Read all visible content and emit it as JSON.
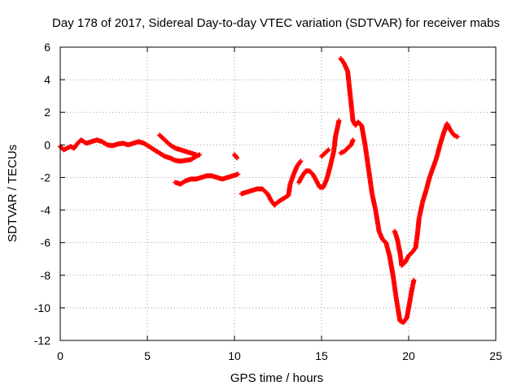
{
  "chart_data": {
    "type": "scatter",
    "title": "Day 178 of 2017, Sidereal Day-to-day VTEC variation (SDTVAR) for receiver mabs",
    "xlabel": "GPS time / hours",
    "ylabel": "SDTVAR / TECUs",
    "xlim": [
      0,
      25
    ],
    "ylim": [
      -12,
      6
    ],
    "x_ticks": [
      "0",
      "5",
      "10",
      "15",
      "20",
      "25"
    ],
    "y_ticks": [
      "-12",
      "-10",
      "-8",
      "-6",
      "-4",
      "-2",
      "0",
      "2",
      "4",
      "6"
    ],
    "grid": true,
    "marker": "plus",
    "series": [
      {
        "name": "SDTVAR",
        "color": "#ff0000",
        "segments": [
          [
            [
              0.0,
              -0.1
            ],
            [
              0.2,
              -0.3
            ],
            [
              0.4,
              -0.2
            ],
            [
              0.6,
              -0.1
            ],
            [
              0.8,
              -0.2
            ],
            [
              1.0,
              0.1
            ],
            [
              1.2,
              0.3
            ],
            [
              1.5,
              0.1
            ],
            [
              1.8,
              0.2
            ],
            [
              2.1,
              0.3
            ],
            [
              2.4,
              0.2
            ],
            [
              2.7,
              0.0
            ],
            [
              3.0,
              -0.05
            ],
            [
              3.3,
              0.05
            ],
            [
              3.6,
              0.1
            ],
            [
              3.9,
              0.0
            ],
            [
              4.2,
              0.1
            ],
            [
              4.5,
              0.2
            ],
            [
              4.8,
              0.1
            ],
            [
              5.1,
              -0.1
            ],
            [
              5.4,
              -0.3
            ],
            [
              5.7,
              -0.5
            ],
            [
              6.0,
              -0.7
            ],
            [
              6.3,
              -0.8
            ],
            [
              6.6,
              -0.95
            ],
            [
              6.9,
              -1.0
            ],
            [
              7.2,
              -0.95
            ],
            [
              7.5,
              -0.9
            ],
            [
              7.8,
              -0.7
            ],
            [
              8.0,
              -0.6
            ]
          ],
          [
            [
              5.7,
              0.6
            ],
            [
              6.0,
              0.3
            ],
            [
              6.3,
              0.0
            ],
            [
              6.6,
              -0.2
            ],
            [
              6.9,
              -0.3
            ],
            [
              7.2,
              -0.4
            ],
            [
              7.5,
              -0.5
            ],
            [
              7.8,
              -0.6
            ]
          ],
          [
            [
              6.6,
              -2.3
            ],
            [
              6.9,
              -2.4
            ],
            [
              7.2,
              -2.2
            ],
            [
              7.5,
              -2.1
            ],
            [
              7.8,
              -2.1
            ],
            [
              8.1,
              -2.0
            ],
            [
              8.4,
              -1.9
            ],
            [
              8.7,
              -1.9
            ],
            [
              9.0,
              -2.0
            ],
            [
              9.3,
              -2.1
            ],
            [
              9.6,
              -2.0
            ],
            [
              9.9,
              -1.9
            ],
            [
              10.2,
              -1.8
            ]
          ],
          [
            [
              10.0,
              -0.6
            ],
            [
              10.15,
              -0.8
            ]
          ],
          [
            [
              10.4,
              -3.0
            ],
            [
              10.7,
              -2.9
            ],
            [
              11.0,
              -2.8
            ],
            [
              11.3,
              -2.7
            ],
            [
              11.6,
              -2.7
            ],
            [
              11.9,
              -3.0
            ],
            [
              12.1,
              -3.4
            ],
            [
              12.3,
              -3.7
            ],
            [
              12.5,
              -3.5
            ],
            [
              12.8,
              -3.3
            ],
            [
              13.1,
              -3.1
            ],
            [
              13.2,
              -2.4
            ],
            [
              13.4,
              -1.8
            ],
            [
              13.6,
              -1.3
            ],
            [
              13.8,
              -1.0
            ]
          ],
          [
            [
              13.7,
              -2.3
            ],
            [
              13.9,
              -1.9
            ],
            [
              14.1,
              -1.6
            ],
            [
              14.3,
              -1.6
            ],
            [
              14.5,
              -1.8
            ],
            [
              14.7,
              -2.2
            ],
            [
              14.9,
              -2.6
            ],
            [
              15.1,
              -2.6
            ],
            [
              15.3,
              -2.1
            ],
            [
              15.5,
              -1.3
            ],
            [
              15.7,
              -0.4
            ],
            [
              15.8,
              0.5
            ],
            [
              15.9,
              1.0
            ],
            [
              16.0,
              1.5
            ]
          ],
          [
            [
              15.0,
              -0.7
            ],
            [
              15.2,
              -0.5
            ],
            [
              15.4,
              -0.3
            ]
          ],
          [
            [
              16.1,
              -0.5
            ],
            [
              16.3,
              -0.4
            ],
            [
              16.5,
              -0.2
            ],
            [
              16.7,
              0.0
            ],
            [
              16.8,
              0.3
            ]
          ],
          [
            [
              16.1,
              5.3
            ],
            [
              16.3,
              5.0
            ],
            [
              16.5,
              4.5
            ],
            [
              16.6,
              3.5
            ],
            [
              16.7,
              2.5
            ],
            [
              16.8,
              1.5
            ],
            [
              16.95,
              1.2
            ],
            [
              17.1,
              1.4
            ],
            [
              17.3,
              1.2
            ],
            [
              17.5,
              0.0
            ],
            [
              17.7,
              -1.5
            ],
            [
              17.9,
              -3.0
            ],
            [
              18.1,
              -4.0
            ],
            [
              18.3,
              -5.3
            ],
            [
              18.5,
              -5.8
            ],
            [
              18.7,
              -6.0
            ],
            [
              18.9,
              -6.8
            ],
            [
              19.1,
              -8.0
            ],
            [
              19.3,
              -9.5
            ],
            [
              19.5,
              -10.8
            ],
            [
              19.7,
              -10.9
            ],
            [
              19.9,
              -10.6
            ],
            [
              20.0,
              -10.0
            ],
            [
              20.1,
              -9.4
            ],
            [
              20.2,
              -8.8
            ],
            [
              20.3,
              -8.3
            ]
          ],
          [
            [
              19.2,
              -5.3
            ],
            [
              19.35,
              -5.8
            ],
            [
              19.5,
              -6.6
            ],
            [
              19.6,
              -7.4
            ],
            [
              19.8,
              -7.2
            ],
            [
              20.0,
              -6.8
            ],
            [
              20.2,
              -6.6
            ],
            [
              20.4,
              -6.3
            ],
            [
              20.5,
              -5.5
            ],
            [
              20.6,
              -4.5
            ],
            [
              20.8,
              -3.5
            ],
            [
              21.0,
              -2.8
            ],
            [
              21.2,
              -2.0
            ],
            [
              21.4,
              -1.4
            ],
            [
              21.6,
              -0.8
            ],
            [
              21.8,
              0.0
            ],
            [
              22.0,
              0.7
            ],
            [
              22.2,
              1.3
            ],
            [
              22.4,
              0.9
            ],
            [
              22.6,
              0.6
            ],
            [
              22.8,
              0.5
            ]
          ]
        ]
      }
    ]
  }
}
